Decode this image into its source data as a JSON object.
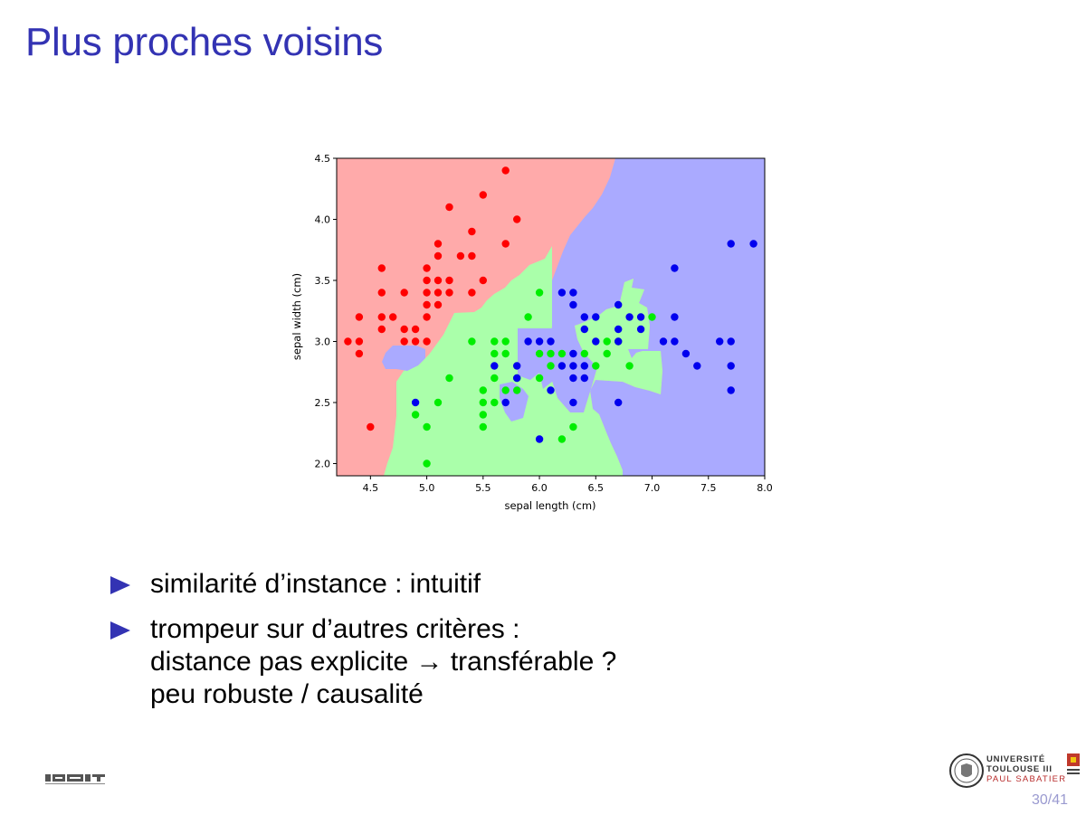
{
  "slide": {
    "title": "Plus proches voisins",
    "bullets": [
      {
        "lines": [
          "similarité d’instance : intuitif"
        ]
      },
      {
        "lines": [
          "trompeur sur d’autres critères :",
          "distance pas explicite → transférable ?",
          "peu robuste / causalité"
        ]
      }
    ],
    "page_number": "30/41",
    "logos": {
      "left": "irit-logo",
      "right": {
        "line1": "UNIVERSITÉ",
        "line2": "TOULOUSE III",
        "line3": "PAUL SABATIER"
      }
    }
  },
  "chart_data": {
    "type": "scatter",
    "title": "",
    "xlabel": "sepal length (cm)",
    "ylabel": "sepal width (cm)",
    "xlim": [
      4.2,
      8.0
    ],
    "ylim": [
      1.9,
      4.5
    ],
    "xticks": [
      "4.5",
      "5.0",
      "5.5",
      "6.0",
      "6.5",
      "7.0",
      "7.5",
      "8.0"
    ],
    "yticks": [
      "2.0",
      "2.5",
      "3.0",
      "3.5",
      "4.0",
      "4.5"
    ],
    "grid": false,
    "background": "nearest-neighbour decision regions",
    "region_colors": {
      "red": "#ffaaaa",
      "green": "#aaffaa",
      "blue": "#aaaaff"
    },
    "series": [
      {
        "color": "#ff0000",
        "points": [
          [
            5.7,
            4.4
          ],
          [
            5.5,
            4.2
          ],
          [
            5.2,
            4.1
          ],
          [
            5.8,
            4.0
          ],
          [
            5.4,
            3.9
          ],
          [
            5.1,
            3.8
          ],
          [
            5.7,
            3.8
          ],
          [
            5.1,
            3.7
          ],
          [
            5.3,
            3.7
          ],
          [
            5.4,
            3.7
          ],
          [
            4.6,
            3.6
          ],
          [
            5.0,
            3.6
          ],
          [
            5.0,
            3.5
          ],
          [
            5.1,
            3.5
          ],
          [
            5.2,
            3.5
          ],
          [
            5.5,
            3.5
          ],
          [
            4.6,
            3.4
          ],
          [
            4.8,
            3.4
          ],
          [
            5.0,
            3.4
          ],
          [
            5.1,
            3.4
          ],
          [
            5.2,
            3.4
          ],
          [
            5.4,
            3.4
          ],
          [
            5.0,
            3.3
          ],
          [
            5.1,
            3.3
          ],
          [
            4.4,
            3.2
          ],
          [
            4.6,
            3.2
          ],
          [
            4.7,
            3.2
          ],
          [
            5.0,
            3.2
          ],
          [
            4.6,
            3.1
          ],
          [
            4.8,
            3.1
          ],
          [
            4.9,
            3.1
          ],
          [
            4.3,
            3.0
          ],
          [
            4.4,
            3.0
          ],
          [
            4.8,
            3.0
          ],
          [
            4.9,
            3.0
          ],
          [
            5.0,
            3.0
          ],
          [
            4.4,
            2.9
          ],
          [
            4.5,
            2.3
          ]
        ]
      },
      {
        "color": "#00ee00",
        "points": [
          [
            6.0,
            3.4
          ],
          [
            5.9,
            3.2
          ],
          [
            7.0,
            3.2
          ],
          [
            5.4,
            3.0
          ],
          [
            5.6,
            3.0
          ],
          [
            5.7,
            3.0
          ],
          [
            6.6,
            3.0
          ],
          [
            6.7,
            3.0
          ],
          [
            5.6,
            2.9
          ],
          [
            5.7,
            2.9
          ],
          [
            6.0,
            2.9
          ],
          [
            6.1,
            2.9
          ],
          [
            6.2,
            2.9
          ],
          [
            6.4,
            2.9
          ],
          [
            6.6,
            2.9
          ],
          [
            6.1,
            2.8
          ],
          [
            6.5,
            2.8
          ],
          [
            6.8,
            2.8
          ],
          [
            5.6,
            2.7
          ],
          [
            5.8,
            2.7
          ],
          [
            6.0,
            2.7
          ],
          [
            5.2,
            2.7
          ],
          [
            5.5,
            2.6
          ],
          [
            5.7,
            2.6
          ],
          [
            5.8,
            2.6
          ],
          [
            5.1,
            2.5
          ],
          [
            5.5,
            2.5
          ],
          [
            5.6,
            2.5
          ],
          [
            5.5,
            2.4
          ],
          [
            4.9,
            2.4
          ],
          [
            5.0,
            2.3
          ],
          [
            5.5,
            2.3
          ],
          [
            6.3,
            2.3
          ],
          [
            6.2,
            2.2
          ],
          [
            5.0,
            2.0
          ]
        ]
      },
      {
        "color": "#0000ee",
        "points": [
          [
            7.7,
            3.8
          ],
          [
            7.9,
            3.8
          ],
          [
            7.2,
            3.6
          ],
          [
            6.2,
            3.4
          ],
          [
            6.3,
            3.4
          ],
          [
            6.3,
            3.3
          ],
          [
            6.7,
            3.3
          ],
          [
            6.4,
            3.2
          ],
          [
            6.5,
            3.2
          ],
          [
            6.8,
            3.2
          ],
          [
            6.9,
            3.2
          ],
          [
            7.2,
            3.2
          ],
          [
            6.4,
            3.1
          ],
          [
            6.7,
            3.1
          ],
          [
            6.9,
            3.1
          ],
          [
            5.9,
            3.0
          ],
          [
            6.0,
            3.0
          ],
          [
            6.1,
            3.0
          ],
          [
            6.5,
            3.0
          ],
          [
            6.7,
            3.0
          ],
          [
            7.1,
            3.0
          ],
          [
            7.2,
            3.0
          ],
          [
            7.6,
            3.0
          ],
          [
            7.7,
            3.0
          ],
          [
            6.3,
            2.9
          ],
          [
            7.3,
            2.9
          ],
          [
            5.6,
            2.8
          ],
          [
            5.8,
            2.8
          ],
          [
            6.2,
            2.8
          ],
          [
            6.3,
            2.8
          ],
          [
            6.4,
            2.8
          ],
          [
            7.4,
            2.8
          ],
          [
            7.7,
            2.8
          ],
          [
            5.8,
            2.7
          ],
          [
            6.3,
            2.7
          ],
          [
            6.4,
            2.7
          ],
          [
            6.1,
            2.6
          ],
          [
            7.7,
            2.6
          ],
          [
            4.9,
            2.5
          ],
          [
            5.7,
            2.5
          ],
          [
            6.3,
            2.5
          ],
          [
            6.7,
            2.5
          ],
          [
            6.0,
            2.2
          ]
        ]
      }
    ]
  }
}
